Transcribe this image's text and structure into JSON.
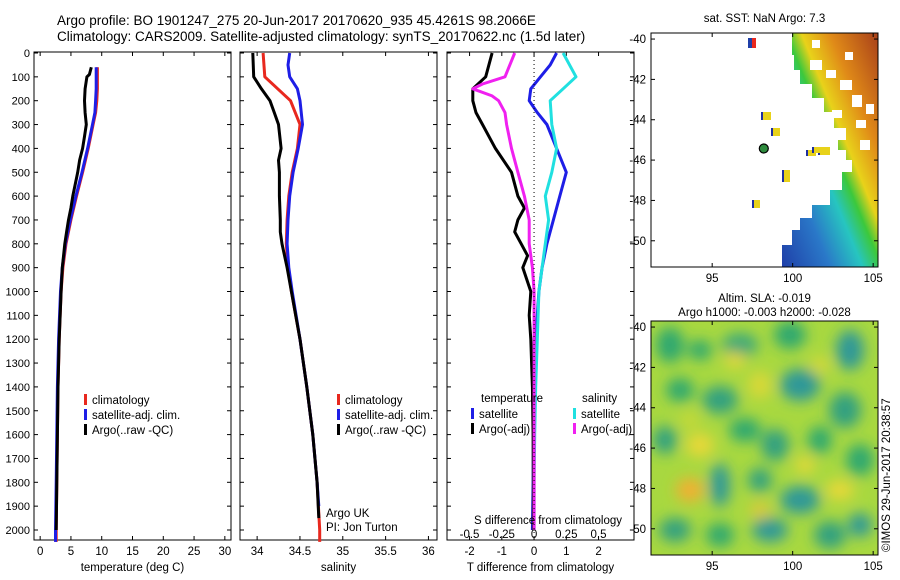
{
  "title": {
    "line1": "Argo profile: BO 1901247_275 20-Jun-2017 20170620_935 45.4261S 98.2066E",
    "line2": "Climatology: CARS2009. Satellite-adjusted climatology: synTS_20170622.nc (1.5d later)"
  },
  "colors": {
    "climatology": "#e8281e",
    "satellite": "#1e1ee6",
    "argo": "#000000",
    "argo_adj_s": "#f020f0",
    "satellite_s": "#20e0e0"
  },
  "chart_data": [
    {
      "type": "line",
      "name": "temperature-profile",
      "xlabel": "temperature (deg C)",
      "xlim": [
        -1,
        31
      ],
      "ylim": [
        2050,
        0
      ],
      "x_ticks": [
        0,
        5,
        10,
        15,
        20,
        25,
        30
      ],
      "y_ticks": [
        0,
        100,
        200,
        300,
        400,
        500,
        600,
        700,
        800,
        900,
        1000,
        1100,
        1200,
        1300,
        1400,
        1500,
        1600,
        1700,
        1800,
        1900,
        2000
      ],
      "legend": [
        "climatology",
        "satellite-adj. clim.",
        "Argo(..raw -QC)"
      ],
      "series": [
        {
          "name": "climatology",
          "color": "#e8281e",
          "depth": [
            60,
            100,
            150,
            200,
            250,
            300,
            400,
            500,
            600,
            700,
            800,
            900,
            1000,
            1200,
            1400,
            1600,
            1800,
            2000,
            2050
          ],
          "values": [
            9.3,
            9.3,
            9.3,
            9.2,
            9.0,
            8.6,
            7.8,
            6.9,
            5.9,
            5.0,
            4.2,
            3.7,
            3.4,
            3.1,
            2.9,
            2.8,
            2.7,
            2.6,
            2.6
          ]
        },
        {
          "name": "satellite-adj. clim.",
          "color": "#1e1ee6",
          "depth": [
            60,
            100,
            150,
            200,
            250,
            300,
            400,
            500,
            600,
            700,
            800,
            900,
            1000,
            1200,
            1400,
            1600,
            1800,
            2000,
            2050
          ],
          "values": [
            9.1,
            9.1,
            9.1,
            9.0,
            8.9,
            8.5,
            7.7,
            6.8,
            5.8,
            4.9,
            4.1,
            3.6,
            3.3,
            3.0,
            2.8,
            2.7,
            2.6,
            2.5,
            2.5
          ]
        },
        {
          "name": "Argo(..raw -QC)",
          "color": "#000000",
          "depth": [
            60,
            90,
            100,
            150,
            200,
            250,
            300,
            350,
            400,
            450,
            500,
            600,
            650,
            700,
            750,
            800,
            900,
            1000,
            1200,
            1400,
            1600,
            1800,
            2000
          ],
          "values": [
            8.3,
            8.0,
            7.6,
            7.3,
            7.2,
            7.3,
            7.5,
            7.2,
            6.9,
            6.4,
            6.1,
            5.3,
            5.0,
            4.6,
            4.3,
            4.0,
            3.6,
            3.4,
            3.1,
            2.9,
            2.8,
            2.7,
            2.6
          ]
        }
      ]
    },
    {
      "type": "line",
      "name": "salinity-profile",
      "xlabel": "salinity",
      "xlim": [
        33.8,
        36.1
      ],
      "ylim": [
        2050,
        0
      ],
      "x_ticks": [
        34,
        34.5,
        35,
        35.5,
        36
      ],
      "legend": [
        "climatology",
        "satellite-adj. clim.",
        "Argo(..raw -QC)"
      ],
      "annotation": [
        "Argo UK",
        "PI: Jon Turton"
      ],
      "series": [
        {
          "name": "climatology",
          "color": "#e8281e",
          "depth": [
            0,
            100,
            200,
            300,
            400,
            500,
            600,
            700,
            800,
            900,
            1000,
            1200,
            1400,
            1600,
            1800,
            2000,
            2050
          ],
          "values": [
            34.07,
            34.09,
            34.39,
            34.5,
            34.47,
            34.41,
            34.37,
            34.35,
            34.34,
            34.36,
            34.4,
            34.5,
            34.58,
            34.65,
            34.7,
            34.73,
            34.73
          ]
        },
        {
          "name": "satellite-adj. clim.",
          "color": "#1e1ee6",
          "depth": [
            0,
            50,
            100,
            150,
            200,
            300,
            400,
            500,
            600,
            700,
            800,
            900,
            1000,
            1200,
            1400,
            1600,
            1800,
            1900
          ],
          "values": [
            34.38,
            34.36,
            34.38,
            34.47,
            34.5,
            34.53,
            34.48,
            34.42,
            34.38,
            34.36,
            34.35,
            34.37,
            34.41,
            34.5,
            34.58,
            34.65,
            34.7,
            34.72
          ]
        },
        {
          "name": "Argo(..raw -QC)",
          "color": "#000000",
          "depth": [
            0,
            100,
            150,
            200,
            250,
            300,
            400,
            450,
            500,
            600,
            700,
            750,
            800,
            900,
            1000,
            1200,
            1400,
            1600,
            1800,
            1950
          ],
          "values": [
            33.95,
            33.96,
            34.05,
            34.15,
            34.2,
            34.25,
            34.28,
            34.25,
            34.26,
            34.26,
            34.27,
            34.27,
            34.29,
            34.35,
            34.4,
            34.5,
            34.58,
            34.65,
            34.7,
            34.72
          ]
        }
      ]
    },
    {
      "type": "line",
      "name": "difference-profile",
      "xlabel": "T difference from climatology",
      "xlabel_top": "S difference from climatology",
      "xlim": [
        -2.7,
        3.1
      ],
      "ylim": [
        2050,
        0
      ],
      "x_ticks": [
        -2,
        -1,
        0,
        1,
        2
      ],
      "x_ticks_s_labels": [
        "-0.5",
        "-0.25",
        "0",
        "0.25",
        "0.5"
      ],
      "x_ticks_s_positions": [
        -2,
        -1,
        0,
        1,
        2
      ],
      "legend_groups": {
        "temperature": [
          "satellite",
          "Argo(-adj)"
        ],
        "salinity": [
          "satellite",
          "Argo(-adj)"
        ]
      },
      "legend_titles": [
        "temperature",
        "salinity"
      ],
      "series": [
        {
          "name": "T satellite",
          "color": "#1e1ee6",
          "depth": [
            0,
            50,
            100,
            150,
            200,
            250,
            300,
            400,
            500,
            600,
            700,
            800,
            900,
            1000,
            1200,
            1400,
            1600,
            1800,
            2000
          ],
          "values": [
            0.7,
            0.5,
            0.2,
            -0.1,
            -0.15,
            0.1,
            0.4,
            0.7,
            1.0,
            0.8,
            0.6,
            0.4,
            0.25,
            0.15,
            0.05,
            0.0,
            -0.02,
            -0.03,
            -0.05
          ]
        },
        {
          "name": "T Argo(-adj)",
          "color": "#000000",
          "depth": [
            0,
            100,
            150,
            200,
            250,
            300,
            400,
            500,
            550,
            600,
            650,
            700,
            750,
            800,
            850,
            900,
            1000,
            1100,
            1200,
            1400,
            1600,
            1800,
            2000
          ],
          "values": [
            -1.3,
            -1.5,
            -1.9,
            -1.9,
            -1.8,
            -1.6,
            -1.2,
            -0.7,
            -0.6,
            -0.5,
            -0.3,
            -0.5,
            -0.6,
            -0.4,
            -0.2,
            -0.35,
            -0.1,
            -0.15,
            -0.1,
            -0.05,
            -0.03,
            -0.02,
            -0.02
          ]
        },
        {
          "name": "S satellite",
          "color": "#20e0e0",
          "depth": [
            0,
            100,
            150,
            200,
            300,
            400,
            500,
            600,
            700,
            800,
            900,
            1000,
            1200,
            1400,
            1600,
            1800,
            2000
          ],
          "values": [
            0.9,
            1.3,
            0.9,
            0.5,
            0.55,
            0.7,
            0.55,
            0.35,
            0.45,
            0.35,
            0.25,
            0.15,
            0.1,
            0.05,
            0.02,
            0.0,
            0.0
          ]
        },
        {
          "name": "S Argo(-adj)",
          "color": "#f020f0",
          "depth": [
            0,
            100,
            130,
            150,
            180,
            200,
            250,
            300,
            400,
            500,
            600,
            700,
            800,
            900,
            1000,
            1200,
            1400,
            1600,
            1800,
            2000
          ],
          "values": [
            -0.6,
            -0.9,
            -1.6,
            -1.9,
            -1.3,
            -1.1,
            -0.9,
            -0.85,
            -0.7,
            -0.5,
            -0.3,
            -0.15,
            -0.15,
            -0.05,
            0.0,
            0.0,
            0.0,
            0.0,
            0.0,
            0.0
          ]
        }
      ]
    },
    {
      "type": "heatmap",
      "name": "sst-map",
      "title": "sat. SST: NaN Argo: 7.3",
      "xlim": [
        91.2,
        105.3
      ],
      "ylim": [
        -51.3,
        -39.7
      ],
      "x_ticks": [
        95,
        100,
        105
      ],
      "y_ticks": [
        -40,
        -42,
        -44,
        -46,
        -48,
        -50
      ],
      "marker": {
        "lon": 98.2066,
        "lat": -45.4261
      }
    },
    {
      "type": "heatmap",
      "name": "sla-map",
      "title": "Altim. SLA: -0.019",
      "subtitle": "Argo h1000: -0.003 h2000: -0.028",
      "xlim": [
        91.2,
        105.3
      ],
      "ylim": [
        -51.3,
        -39.7
      ],
      "x_ticks": [
        95,
        100,
        105
      ],
      "y_ticks": [
        -40,
        -42,
        -44,
        -46,
        -48,
        -50
      ]
    }
  ],
  "credit": "©IMOS 29-Jun-2017 20:38:57"
}
